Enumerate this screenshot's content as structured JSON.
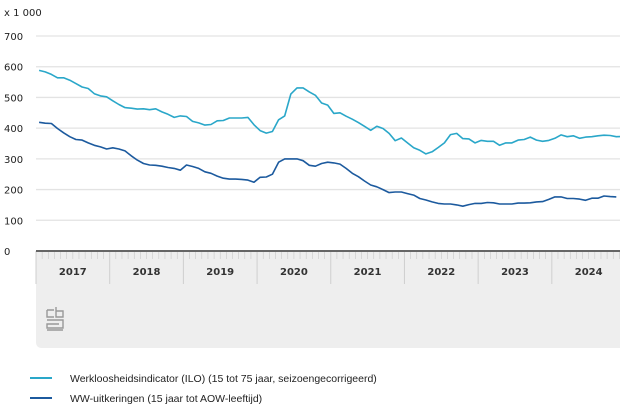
{
  "chart_data": {
    "type": "line",
    "unit_label": "x 1 000",
    "ylim": [
      0,
      700
    ],
    "yticks": [
      0,
      100,
      200,
      300,
      400,
      500,
      600,
      700
    ],
    "grid": true,
    "x_start": "2017-01",
    "x_frequency": "monthly",
    "year_labels": [
      "2017",
      "2018",
      "2019",
      "2020",
      "2021",
      "2022",
      "2023",
      "2024"
    ],
    "legend_position": "bottom",
    "series": [
      {
        "name": "Werkloosheidsindicator (ILO) (15 tot 75 jaar, seizoengecorrigeerd)",
        "color": "#2aa7c9",
        "values": [
          588,
          583,
          575,
          564,
          564,
          556,
          545,
          534,
          529,
          512,
          505,
          502,
          489,
          477,
          467,
          465,
          462,
          463,
          460,
          463,
          453,
          445,
          435,
          440,
          438,
          422,
          417,
          410,
          412,
          424,
          425,
          433,
          433,
          433,
          435,
          411,
          392,
          384,
          389,
          427,
          440,
          511,
          531,
          531,
          518,
          507,
          482,
          475,
          448,
          450,
          439,
          429,
          418,
          406,
          393,
          406,
          399,
          383,
          359,
          368,
          352,
          336,
          328,
          316,
          323,
          337,
          352,
          379,
          383,
          366,
          365,
          352,
          360,
          357,
          357,
          344,
          352,
          352,
          361,
          363,
          371,
          361,
          357,
          360,
          367,
          378,
          372,
          375,
          367,
          371,
          372,
          375,
          377,
          376,
          372,
          373
        ]
      },
      {
        "name": "WW-uitkeringen (15 jaar tot AOW-leeftijd)",
        "color": "#1c5a9e",
        "values": [
          419,
          416,
          415,
          399,
          385,
          372,
          363,
          361,
          352,
          344,
          339,
          332,
          336,
          332,
          326,
          310,
          296,
          285,
          280,
          279,
          276,
          272,
          269,
          263,
          280,
          275,
          269,
          258,
          253,
          244,
          237,
          234,
          234,
          233,
          231,
          224,
          240,
          241,
          250,
          289,
          300,
          300,
          300,
          294,
          279,
          276,
          285,
          289,
          287,
          283,
          269,
          253,
          242,
          228,
          215,
          209,
          200,
          190,
          192,
          192,
          187,
          182,
          171,
          166,
          160,
          155,
          153,
          153,
          150,
          146,
          151,
          155,
          155,
          158,
          157,
          153,
          153,
          153,
          156,
          156,
          157,
          160,
          161,
          168,
          176,
          176,
          171,
          171,
          169,
          165,
          172,
          172,
          179,
          177,
          176
        ]
      }
    ]
  }
}
